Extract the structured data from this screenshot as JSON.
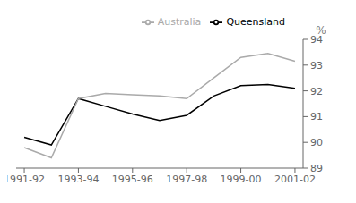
{
  "chart_data": {
    "type": "line",
    "x": [
      0,
      1,
      2,
      3,
      4,
      5,
      6,
      7,
      8,
      9,
      10
    ],
    "series": [
      {
        "name": "Queensland",
        "color": "#000000",
        "values": [
          90.2,
          89.9,
          91.7,
          91.4,
          91.1,
          90.85,
          91.05,
          91.8,
          92.2,
          92.25,
          92.1
        ]
      },
      {
        "name": "Australia",
        "color": "#aaaaaa",
        "values": [
          89.8,
          89.4,
          91.7,
          91.9,
          91.85,
          91.8,
          91.7,
          92.5,
          93.3,
          93.45,
          93.15
        ]
      }
    ],
    "xlim": [
      -0.3,
      10.3
    ],
    "xticks": [
      {
        "value": 0,
        "label": "1991-92"
      },
      {
        "value": 2,
        "label": "1993-94"
      },
      {
        "value": 4,
        "label": "1995-96"
      },
      {
        "value": 6,
        "label": "1997-98"
      },
      {
        "value": 8,
        "label": "1999-00"
      },
      {
        "value": 10,
        "label": "2001-02"
      }
    ],
    "ylim": [
      89,
      94
    ],
    "yticks": [
      89,
      90,
      91,
      92,
      93,
      94
    ],
    "ylabel": "%",
    "legend": "upper right",
    "grid": false
  }
}
